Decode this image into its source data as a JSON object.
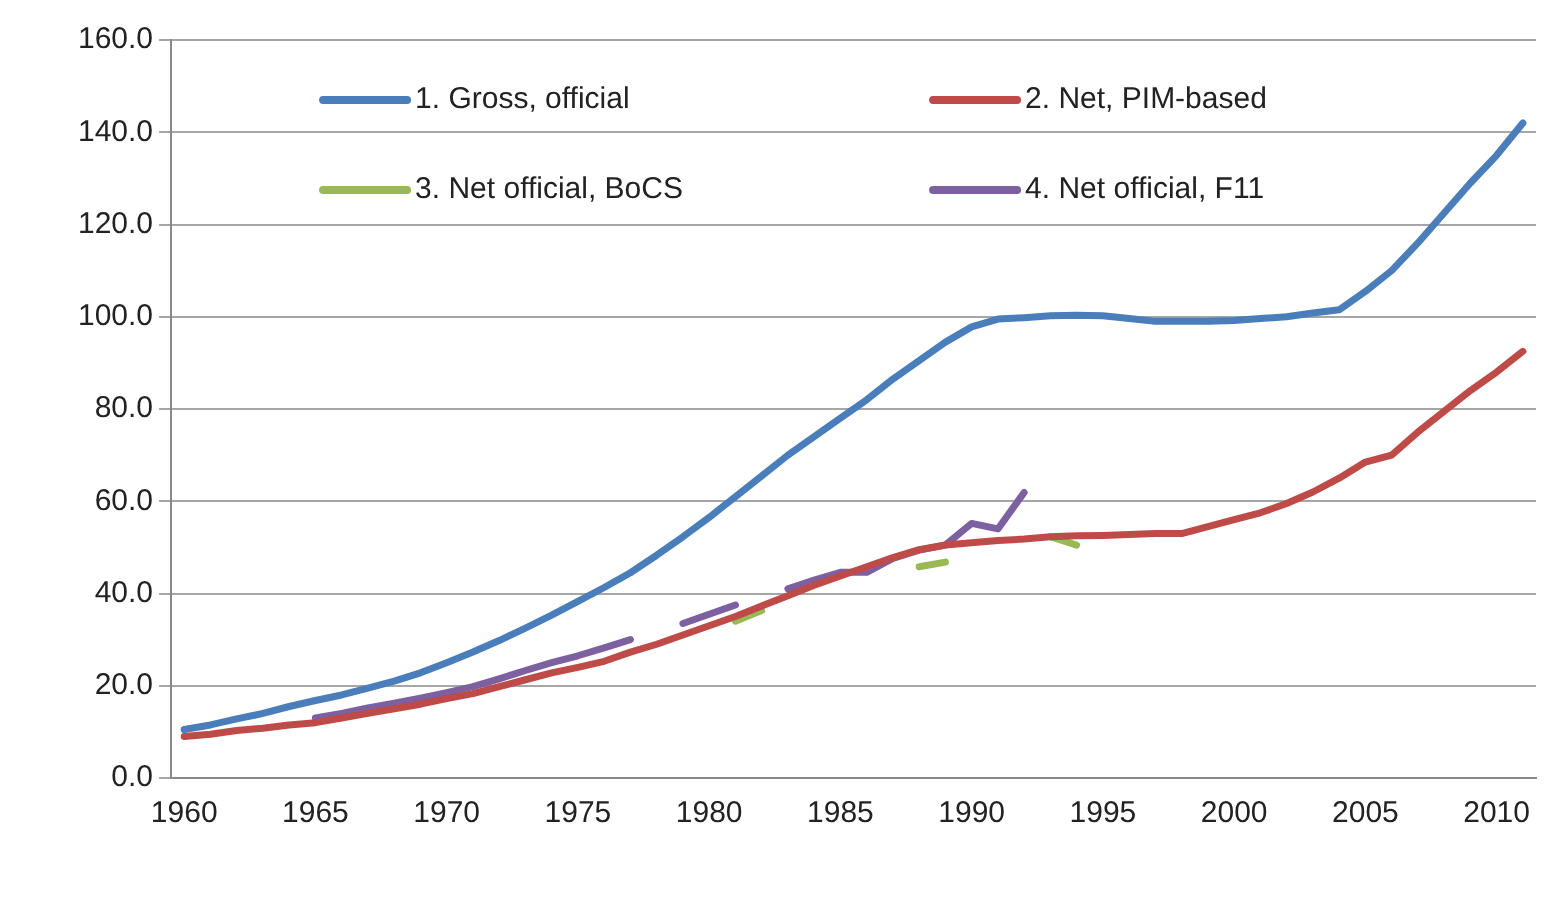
{
  "chart_data": {
    "type": "line",
    "x": [
      1960,
      1961,
      1962,
      1963,
      1964,
      1965,
      1966,
      1967,
      1968,
      1969,
      1970,
      1971,
      1972,
      1973,
      1974,
      1975,
      1976,
      1977,
      1978,
      1979,
      1980,
      1981,
      1982,
      1983,
      1984,
      1985,
      1986,
      1987,
      1988,
      1989,
      1990,
      1991,
      1992,
      1993,
      1994,
      1995,
      1996,
      1997,
      1998,
      1999,
      2000,
      2001,
      2002,
      2003,
      2004,
      2005,
      2006,
      2007,
      2008,
      2009,
      2010,
      2011
    ],
    "series": [
      {
        "name": "1. Gross, official",
        "color": "#4a7ebb",
        "values": [
          10.5,
          11.5,
          12.8,
          14,
          15.5,
          16.8,
          18,
          19.5,
          21,
          22.8,
          25,
          27.3,
          29.8,
          32.5,
          35.3,
          38.3,
          41.3,
          44.5,
          48.3,
          52.3,
          56.5,
          61,
          65.5,
          70,
          74,
          78,
          82,
          86.5,
          90.5,
          94.5,
          97.8,
          99.5,
          99.8,
          100.2,
          100.3,
          100.2,
          99.6,
          99,
          99,
          99,
          99.2,
          99.6,
          100,
          100.8,
          101.5,
          105.5,
          110,
          116,
          122.5,
          129,
          135,
          142
        ]
      },
      {
        "name": "2. Net, PIM-based",
        "color": "#be4b48",
        "values": [
          9,
          9.5,
          10.3,
          10.8,
          11.5,
          12,
          13,
          14,
          15,
          16,
          17.2,
          18.3,
          19.8,
          21.3,
          22.8,
          24,
          25.3,
          27.3,
          29,
          31,
          33,
          35,
          37.3,
          39.5,
          41.8,
          43.8,
          45.8,
          47.8,
          49.5,
          50.5,
          51,
          51.5,
          51.8,
          52.3,
          52.5,
          52.6,
          52.8,
          53,
          53,
          54.5,
          56,
          57.5,
          59.5,
          62,
          65,
          68.5,
          70,
          75,
          79.5,
          84,
          88,
          92.5
        ]
      },
      {
        "name": "3. Net official, BoCS",
        "color": "#98b954",
        "values": [
          null,
          null,
          null,
          null,
          null,
          null,
          null,
          null,
          null,
          null,
          null,
          null,
          null,
          null,
          null,
          null,
          null,
          null,
          null,
          null,
          null,
          34,
          36.3,
          null,
          null,
          null,
          null,
          null,
          45.8,
          46.8,
          null,
          null,
          null,
          52.3,
          50.5,
          null,
          null,
          null,
          null,
          null,
          null,
          null,
          null,
          null,
          null,
          null,
          null,
          null,
          null,
          null,
          null,
          null
        ]
      },
      {
        "name": "4. Net official, F11",
        "color": "#7d60a0",
        "values": [
          null,
          null,
          null,
          null,
          null,
          13,
          14,
          15.2,
          16.2,
          17.3,
          18.5,
          19.8,
          21.5,
          23.3,
          25,
          26.5,
          28.2,
          30,
          null,
          33.5,
          35.5,
          37.5,
          null,
          41,
          42.9,
          44.6,
          44.6,
          47.6,
          49.4,
          50.5,
          55.2,
          54,
          61.9,
          null,
          null,
          null,
          null,
          null,
          null,
          null,
          null,
          null,
          null,
          null,
          null,
          null,
          null,
          null,
          null,
          null,
          null,
          null
        ]
      }
    ],
    "xlim": [
      1959.5,
      2011.5
    ],
    "xticks": [
      1960,
      1965,
      1970,
      1975,
      1980,
      1985,
      1990,
      1995,
      2000,
      2005,
      2010
    ],
    "ylim": [
      0,
      160
    ],
    "yticks": [
      {
        "value": 0,
        "label": "0.0"
      },
      {
        "value": 20,
        "label": "20.0"
      },
      {
        "value": 40,
        "label": "40.0"
      },
      {
        "value": 60,
        "label": "60.0"
      },
      {
        "value": 80,
        "label": "80.0"
      },
      {
        "value": 100,
        "label": "100.0"
      },
      {
        "value": 120,
        "label": "120.0"
      },
      {
        "value": 140,
        "label": "140.0"
      },
      {
        "value": 160,
        "label": "160.0"
      }
    ],
    "grid": "y",
    "legend": "top",
    "marker": "none",
    "line_style": "solid"
  }
}
